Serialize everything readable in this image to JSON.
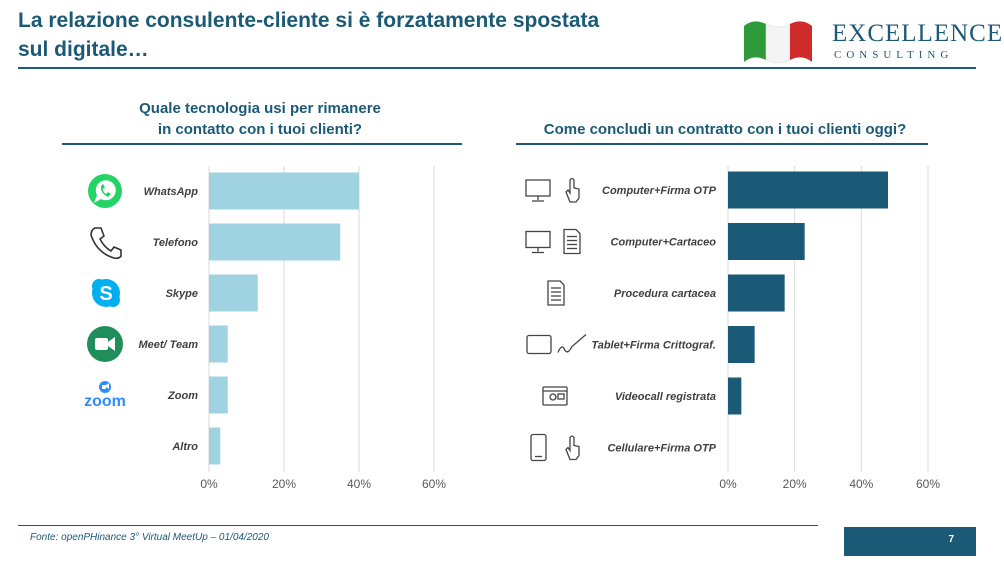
{
  "header": {
    "title_line1": "La relazione consulente-cliente si è forzatamente spostata",
    "title_line2": "sul digitale…",
    "logo_line1": "EXCELLENCE",
    "logo_line2": "CONSULTING"
  },
  "colors": {
    "accent": "#1b5a76",
    "bar_light": "#9fd3e2",
    "bar_dark": "#1b5a76",
    "grid": "#d9d9d9"
  },
  "chart_data": [
    {
      "type": "bar",
      "orientation": "horizontal",
      "title_line1": "Quale tecnologia usi per rimanere",
      "title_line2": "in contatto con i tuoi clienti?",
      "categories": [
        "WhatsApp",
        "Telefono",
        "Skype",
        "Meet/ Team",
        "Zoom",
        "Altro"
      ],
      "icons": [
        "whatsapp-icon",
        "phone-icon",
        "skype-icon",
        "meet-icon",
        "zoom-icon",
        ""
      ],
      "values": [
        40,
        35,
        13,
        5,
        5,
        3
      ],
      "ticks": [
        "0%",
        "20%",
        "40%",
        "60%"
      ],
      "xlim": [
        0,
        60
      ],
      "grid": true,
      "color": "#9fd3e2"
    },
    {
      "type": "bar",
      "orientation": "horizontal",
      "title_line1": "Come concludi un contratto con i tuoi clienti oggi?",
      "categories": [
        "Computer+Firma OTP",
        "Computer+Cartaceo",
        "Procedura cartacea",
        "Tablet+Firma Crittograf.",
        "Videocall registrata",
        "Cellulare+Firma OTP"
      ],
      "icons": [
        "monitor-touch-icon",
        "monitor-document-icon",
        "document-icon",
        "tablet-signature-icon",
        "videocall-icon",
        "smartphone-touch-icon"
      ],
      "values": [
        48,
        23,
        17,
        8,
        4,
        0
      ],
      "ticks": [
        "0%",
        "20%",
        "40%",
        "60%"
      ],
      "xlim": [
        0,
        60
      ],
      "grid": true,
      "color": "#1b5a76"
    }
  ],
  "footer": {
    "source": "Fonte: openPHinance 3° Virtual MeetUp – 01/04/2020",
    "page_number": "7"
  }
}
